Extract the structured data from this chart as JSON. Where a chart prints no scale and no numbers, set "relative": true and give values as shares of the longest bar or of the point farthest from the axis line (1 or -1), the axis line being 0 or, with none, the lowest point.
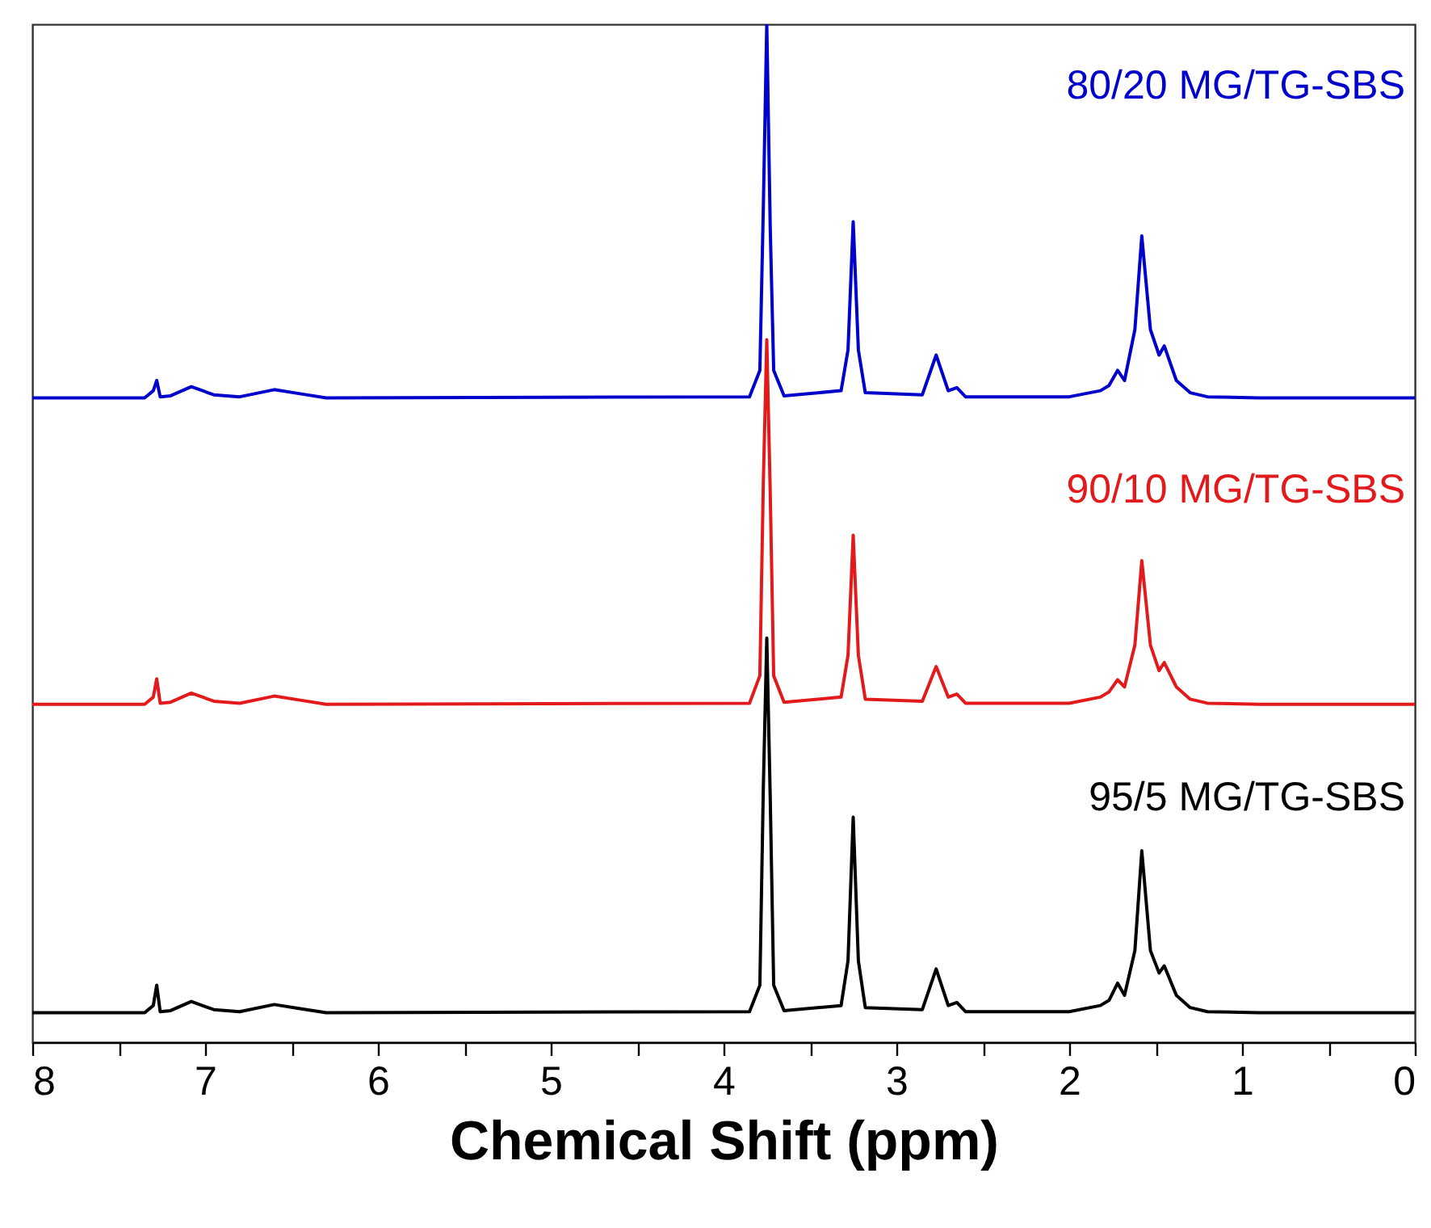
{
  "chart_data": {
    "type": "line",
    "relative": true,
    "xlabel": "Chemical Shift (ppm)",
    "xlim": [
      8,
      0
    ],
    "xticks": [
      8,
      {
        "value": 7.5,
        "label": null
      },
      7,
      {
        "value": 6.5,
        "label": null
      },
      6,
      {
        "value": 5.5,
        "label": null
      },
      5,
      {
        "value": 4.5,
        "label": null
      },
      4,
      {
        "value": 3.5,
        "label": null
      },
      3,
      {
        "value": 2.5,
        "label": null
      },
      2,
      {
        "value": 1.5,
        "label": null
      },
      1,
      {
        "value": 0.5,
        "label": null
      },
      0
    ],
    "x": [
      8,
      7.35,
      7.3,
      7.28,
      7.26,
      7.2,
      7.08,
      6.95,
      6.8,
      6.6,
      6.45,
      6.3,
      3.85,
      3.79,
      3.77,
      3.75,
      3.73,
      3.71,
      3.65,
      3.32,
      3.28,
      3.25,
      3.22,
      3.18,
      2.85,
      2.77,
      2.7,
      2.65,
      2.6,
      2.0,
      1.82,
      1.77,
      1.72,
      1.68,
      1.62,
      1.58,
      1.53,
      1.48,
      1.45,
      1.38,
      1.3,
      1.2,
      0.9,
      0
    ],
    "legend": false,
    "grid": false,
    "series": [
      {
        "name": "95/5 MG/TG-SBS",
        "color": "#000000",
        "values": [
          0.029,
          0.029,
          0.036,
          0.056,
          0.03,
          0.031,
          0.04,
          0.032,
          0.03,
          0.037,
          0.033,
          0.029,
          0.03,
          0.056,
          0.25,
          0.397,
          0.24,
          0.056,
          0.031,
          0.036,
          0.08,
          0.221,
          0.08,
          0.034,
          0.032,
          0.072,
          0.036,
          0.039,
          0.03,
          0.03,
          0.036,
          0.041,
          0.058,
          0.046,
          0.09,
          0.188,
          0.09,
          0.068,
          0.075,
          0.046,
          0.034,
          0.03,
          0.029,
          0.029
        ]
      },
      {
        "name": "90/10 MG/TG-SBS",
        "color": "#e31a1c",
        "values": [
          0.332,
          0.332,
          0.339,
          0.357,
          0.333,
          0.334,
          0.343,
          0.335,
          0.333,
          0.34,
          0.336,
          0.332,
          0.333,
          0.36,
          0.55,
          0.69,
          0.54,
          0.36,
          0.334,
          0.339,
          0.38,
          0.498,
          0.38,
          0.337,
          0.335,
          0.369,
          0.339,
          0.342,
          0.333,
          0.333,
          0.339,
          0.344,
          0.356,
          0.349,
          0.39,
          0.473,
          0.39,
          0.365,
          0.373,
          0.349,
          0.337,
          0.333,
          0.332,
          0.332
        ]
      },
      {
        "name": "80/20 MG/TG-SBS",
        "color": "#0000cc",
        "values": [
          0.633,
          0.633,
          0.64,
          0.65,
          0.634,
          0.635,
          0.644,
          0.636,
          0.634,
          0.641,
          0.637,
          0.633,
          0.634,
          0.66,
          0.82,
          1.0,
          0.8,
          0.66,
          0.635,
          0.64,
          0.68,
          0.806,
          0.68,
          0.638,
          0.636,
          0.675,
          0.64,
          0.643,
          0.634,
          0.634,
          0.64,
          0.645,
          0.66,
          0.65,
          0.7,
          0.792,
          0.7,
          0.675,
          0.684,
          0.65,
          0.638,
          0.634,
          0.633,
          0.633
        ]
      }
    ]
  }
}
